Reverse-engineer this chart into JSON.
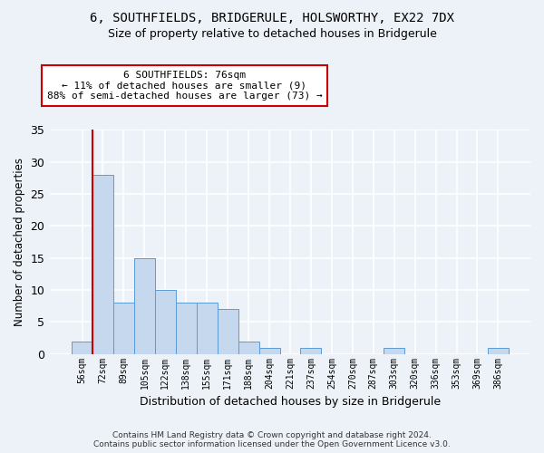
{
  "title": "6, SOUTHFIELDS, BRIDGERULE, HOLSWORTHY, EX22 7DX",
  "subtitle": "Size of property relative to detached houses in Bridgerule",
  "xlabel": "Distribution of detached houses by size in Bridgerule",
  "ylabel": "Number of detached properties",
  "bar_color": "#c5d8ed",
  "bar_edge_color": "#5b9bd5",
  "bar_labels": [
    "56sqm",
    "72sqm",
    "89sqm",
    "105sqm",
    "122sqm",
    "138sqm",
    "155sqm",
    "171sqm",
    "188sqm",
    "204sqm",
    "221sqm",
    "237sqm",
    "254sqm",
    "270sqm",
    "287sqm",
    "303sqm",
    "320sqm",
    "336sqm",
    "353sqm",
    "369sqm",
    "386sqm"
  ],
  "bar_values": [
    2,
    28,
    8,
    15,
    10,
    8,
    8,
    7,
    2,
    1,
    0,
    1,
    0,
    0,
    0,
    1,
    0,
    0,
    0,
    0,
    1
  ],
  "ylim": [
    0,
    35
  ],
  "yticks": [
    0,
    5,
    10,
    15,
    20,
    25,
    30,
    35
  ],
  "vline_x_index": 1,
  "vline_color": "#cc0000",
  "annotation_text": "6 SOUTHFIELDS: 76sqm\n← 11% of detached houses are smaller (9)\n88% of semi-detached houses are larger (73) →",
  "annotation_box_color": "#ffffff",
  "annotation_box_edge": "#cc0000",
  "footer_line1": "Contains HM Land Registry data © Crown copyright and database right 2024.",
  "footer_line2": "Contains public sector information licensed under the Open Government Licence v3.0.",
  "bg_color": "#edf2f8",
  "plot_bg_color": "#edf2f8",
  "grid_color": "#ffffff"
}
